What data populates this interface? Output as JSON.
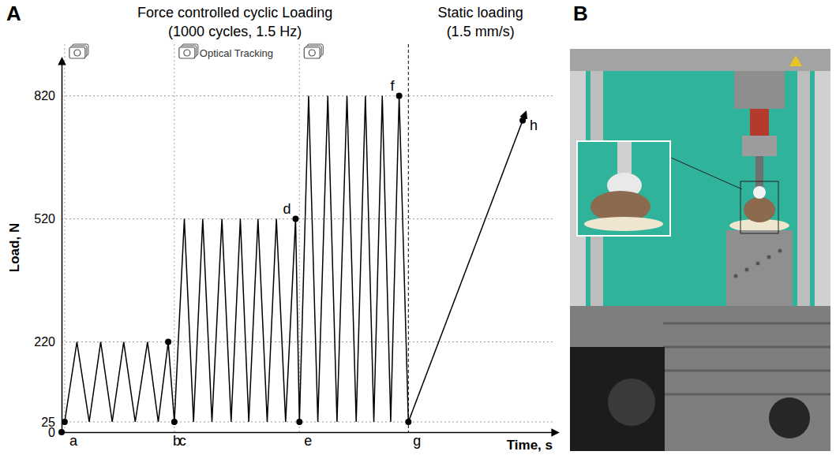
{
  "panel_labels": [
    "A",
    "B"
  ],
  "chart_data": {
    "type": "line",
    "title": "Force controlled cyclic Loading",
    "subtitle": "(1000 cycles, 1.5 Hz)",
    "x_label": "Time, s",
    "y_label": "Load, N",
    "xlim": [
      0,
      64
    ],
    "xticks": [],
    "ylim": [
      0,
      900
    ],
    "yticks": [
      0,
      25,
      220,
      520,
      820
    ],
    "grid": true,
    "tick_labels": "y",
    "series": [
      {
        "color": "#000000",
        "line_style": "solid",
        "x": [
          0.4,
          2.0,
          3.6,
          5.1,
          6.6,
          8.1,
          9.6,
          11.2,
          12.6,
          13.9,
          14.7,
          16.0,
          17.2,
          18.4,
          19.6,
          20.9,
          22.1,
          23.3,
          24.4,
          25.6,
          26.8,
          28.0,
          29.2,
          30.5,
          31.0,
          32.2,
          33.4,
          34.7,
          35.9,
          37.2,
          38.4,
          39.6,
          40.7,
          41.8,
          42.9,
          44.0,
          45.2
        ],
        "values": [
          25,
          220,
          25,
          220,
          25,
          220,
          25,
          220,
          25,
          220,
          25,
          520,
          25,
          520,
          25,
          520,
          25,
          520,
          25,
          520,
          25,
          520,
          25,
          520,
          25,
          820,
          25,
          820,
          25,
          820,
          25,
          820,
          25,
          820,
          25,
          820,
          25
        ]
      },
      {
        "color": "#000000",
        "line_style": "arrow",
        "x": [
          45.2,
          60.1
        ],
        "values": [
          25,
          760
        ]
      }
    ],
    "points": [
      {
        "label": "a",
        "x": 0.4,
        "y": 25
      },
      {
        "label": "b",
        "x": 13.9,
        "y": 220
      },
      {
        "label": "c",
        "x": 14.7,
        "y": 25
      },
      {
        "label": "d",
        "x": 30.5,
        "y": 520
      },
      {
        "label": "e",
        "x": 31.0,
        "y": 25
      },
      {
        "label": "f",
        "x": 44.0,
        "y": 820
      },
      {
        "label": "g",
        "x": 45.2,
        "y": 25
      },
      {
        "label": "h",
        "x": 60.1,
        "y": 760
      }
    ],
    "optical_tracking": {
      "label": "Optical Tracking",
      "x": [
        0.4,
        14.7,
        31.0
      ]
    },
    "annotations": [
      {
        "text": "Static loading"
      },
      {
        "text": "(1.5 mm/s)"
      }
    ]
  }
}
